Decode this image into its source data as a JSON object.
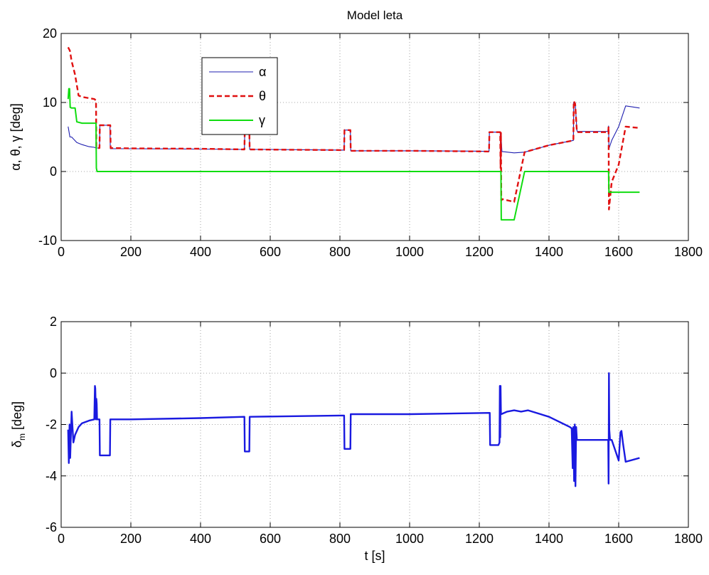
{
  "figure": {
    "title": "Model leta"
  },
  "chart_data": [
    {
      "type": "line",
      "title": "Model leta",
      "xlabel": "",
      "ylabel": "α, θ, γ [deg]",
      "xlim": [
        0,
        1800
      ],
      "ylim": [
        -10,
        20
      ],
      "xticks": [
        0,
        200,
        400,
        600,
        800,
        1000,
        1200,
        1400,
        1600,
        1800
      ],
      "yticks": [
        -10,
        0,
        10,
        20
      ],
      "grid": true,
      "legend_position": "upper-left",
      "series": [
        {
          "name": "α",
          "color": "#1f1fb0",
          "style": "solid",
          "x": [
            20,
            25,
            30,
            45,
            60,
            80,
            95,
            100,
            105,
            110,
            111,
            115,
            130,
            140,
            141,
            200,
            400,
            526,
            527,
            540,
            541,
            600,
            800,
            812,
            813,
            830,
            831,
            1000,
            1200,
            1228,
            1229,
            1260,
            1261,
            1262,
            1265,
            1300,
            1330,
            1400,
            1460,
            1470,
            1471,
            1475,
            1480,
            1481,
            1570,
            1571,
            1572,
            1580,
            1600,
            1620,
            1660
          ],
          "y": [
            6.5,
            5.0,
            5.0,
            4.2,
            3.9,
            3.6,
            3.5,
            3.4,
            3.4,
            3.4,
            6.7,
            6.7,
            6.7,
            6.7,
            3.3,
            3.3,
            3.25,
            3.2,
            6.0,
            6.0,
            3.2,
            3.2,
            3.1,
            3.1,
            6.0,
            6.0,
            3.0,
            3.0,
            2.95,
            2.9,
            5.7,
            5.7,
            0.5,
            5.6,
            2.9,
            2.7,
            2.8,
            3.8,
            4.4,
            4.5,
            10.0,
            10.0,
            6.0,
            5.8,
            5.8,
            6.6,
            3.3,
            4.5,
            6.5,
            9.5,
            9.2
          ]
        },
        {
          "name": "θ",
          "color": "#e01010",
          "style": "dashed",
          "x": [
            20,
            25,
            30,
            40,
            50,
            60,
            95,
            100,
            101,
            110,
            111,
            130,
            141,
            142,
            200,
            400,
            526,
            527,
            540,
            541,
            800,
            812,
            813,
            830,
            831,
            1000,
            1228,
            1229,
            1260,
            1261,
            1262,
            1263,
            1266,
            1300,
            1330,
            1400,
            1460,
            1470,
            1471,
            1475,
            1480,
            1481,
            1570,
            1571,
            1572,
            1580,
            1600,
            1620,
            1660
          ],
          "y": [
            18.0,
            17.5,
            16.0,
            14.0,
            11.0,
            10.8,
            10.5,
            10.3,
            3.4,
            3.4,
            6.7,
            6.7,
            6.7,
            3.4,
            3.35,
            3.3,
            3.2,
            6.0,
            6.0,
            3.2,
            3.1,
            3.1,
            6.0,
            6.0,
            3.0,
            3.0,
            2.9,
            5.7,
            5.7,
            0.5,
            5.6,
            -4.2,
            -4.0,
            -4.4,
            2.8,
            3.8,
            4.4,
            4.5,
            10.2,
            9.8,
            5.8,
            5.7,
            5.7,
            6.5,
            -5.5,
            -1.5,
            1.0,
            6.5,
            6.3
          ]
        },
        {
          "name": "γ",
          "color": "#10dd10",
          "style": "solid",
          "x": [
            20,
            22,
            24,
            26,
            30,
            40,
            45,
            60,
            95,
            100,
            101,
            103,
            200,
            600,
            1000,
            1260,
            1262,
            1263,
            1266,
            1300,
            1330,
            1400,
            1570,
            1571,
            1572,
            1600,
            1660
          ],
          "y": [
            10.5,
            12.0,
            12.0,
            9.3,
            9.2,
            9.2,
            7.2,
            7.0,
            7.0,
            7.0,
            0.5,
            0.0,
            0.0,
            0.0,
            0.0,
            0.0,
            0.0,
            -7.0,
            -7.0,
            -7.0,
            0.0,
            0.0,
            0.0,
            0.0,
            -3.0,
            -3.0,
            -3.0
          ]
        }
      ]
    },
    {
      "type": "line",
      "title": "",
      "xlabel": "t  [s]",
      "ylabel": "δm  [deg]",
      "xlim": [
        0,
        1800
      ],
      "ylim": [
        -6,
        2
      ],
      "xticks": [
        0,
        200,
        400,
        600,
        800,
        1000,
        1200,
        1400,
        1600,
        1800
      ],
      "yticks": [
        -6,
        -4,
        -2,
        0,
        2
      ],
      "grid": true,
      "series": [
        {
          "name": "",
          "color": "#1a1ae0",
          "style": "solid",
          "x": [
            20,
            22,
            24,
            26,
            30,
            35,
            40,
            50,
            60,
            80,
            95,
            96,
            97,
            98,
            100,
            101,
            102,
            103,
            110,
            111,
            140,
            141,
            200,
            400,
            526,
            527,
            540,
            541,
            800,
            812,
            813,
            830,
            831,
            1000,
            1230,
            1231,
            1255,
            1258,
            1259,
            1260,
            1261,
            1262,
            1263,
            1280,
            1300,
            1320,
            1340,
            1400,
            1460,
            1465,
            1468,
            1470,
            1472,
            1474,
            1476,
            1478,
            1480,
            1482,
            1565,
            1570,
            1571,
            1572,
            1573,
            1575,
            1580,
            1590,
            1600,
            1605,
            1608,
            1612,
            1620,
            1660
          ],
          "y": [
            -2.2,
            -3.5,
            -2.0,
            -3.3,
            -1.5,
            -2.7,
            -2.4,
            -2.1,
            -1.95,
            -1.85,
            -1.8,
            -1.2,
            -0.5,
            -0.6,
            -1.8,
            -1.0,
            -1.2,
            -1.8,
            -1.8,
            -3.2,
            -3.2,
            -1.8,
            -1.8,
            -1.75,
            -1.7,
            -3.05,
            -3.05,
            -1.7,
            -1.65,
            -1.65,
            -2.95,
            -2.95,
            -1.6,
            -1.6,
            -1.55,
            -2.8,
            -2.8,
            -2.7,
            -0.5,
            -2.5,
            -0.5,
            -1.55,
            -1.6,
            -1.5,
            -1.45,
            -1.5,
            -1.45,
            -1.7,
            -2.1,
            -2.15,
            -3.7,
            -2.1,
            -4.2,
            -2.0,
            -4.4,
            -2.1,
            -2.6,
            -2.6,
            -2.6,
            -2.6,
            -4.3,
            0.0,
            -2.2,
            -2.6,
            -2.6,
            -3.0,
            -3.4,
            -2.3,
            -2.25,
            -2.7,
            -3.45,
            -3.3
          ]
        }
      ]
    }
  ]
}
